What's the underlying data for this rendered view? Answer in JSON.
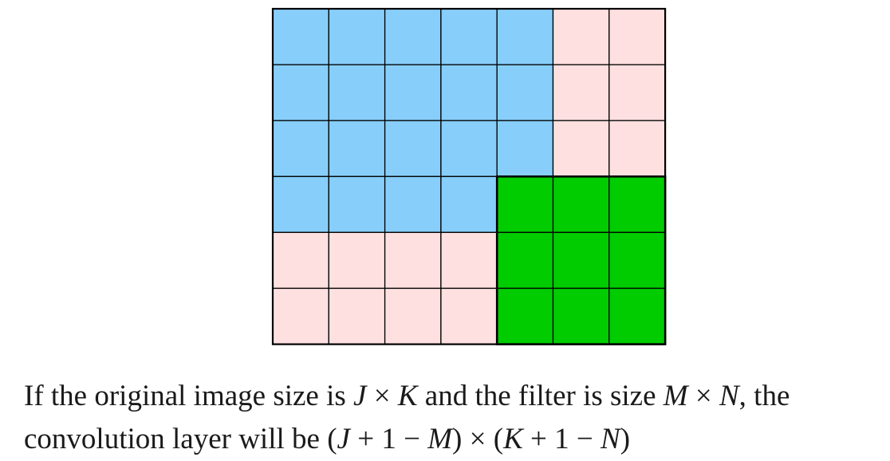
{
  "grid": {
    "rows": 6,
    "cols": 7,
    "colors": {
      "image": "#87cefa",
      "padding": "#ffe0e0",
      "filter": "#00cc00",
      "line": "#000000"
    },
    "image_region": {
      "rows_full": 3,
      "cols_full": 5,
      "row_partial": 1,
      "cols_partial": 4
    },
    "filter_region": {
      "row_start": 3,
      "col_start": 4,
      "rows": 3,
      "cols": 3
    }
  },
  "caption": {
    "line1": {
      "t1": "If the original image size is ",
      "J": "J",
      "times1": "×",
      "K": "K",
      "t2": " and the filter is size ",
      "M": "M",
      "times2": "×",
      "N": "N",
      "t3": ", the"
    },
    "line2": {
      "t1": "convolution layer will be ",
      "expr_open1": "(",
      "J": "J",
      "plus": "+",
      "one1": "1",
      "minus1": "−",
      "M": "M",
      "expr_close1": ")",
      "times": "×",
      "expr_open2": "(",
      "K": "K",
      "plus2": "+",
      "one2": "1",
      "minus2": "−",
      "N": "N",
      "expr_close2": ")"
    }
  }
}
